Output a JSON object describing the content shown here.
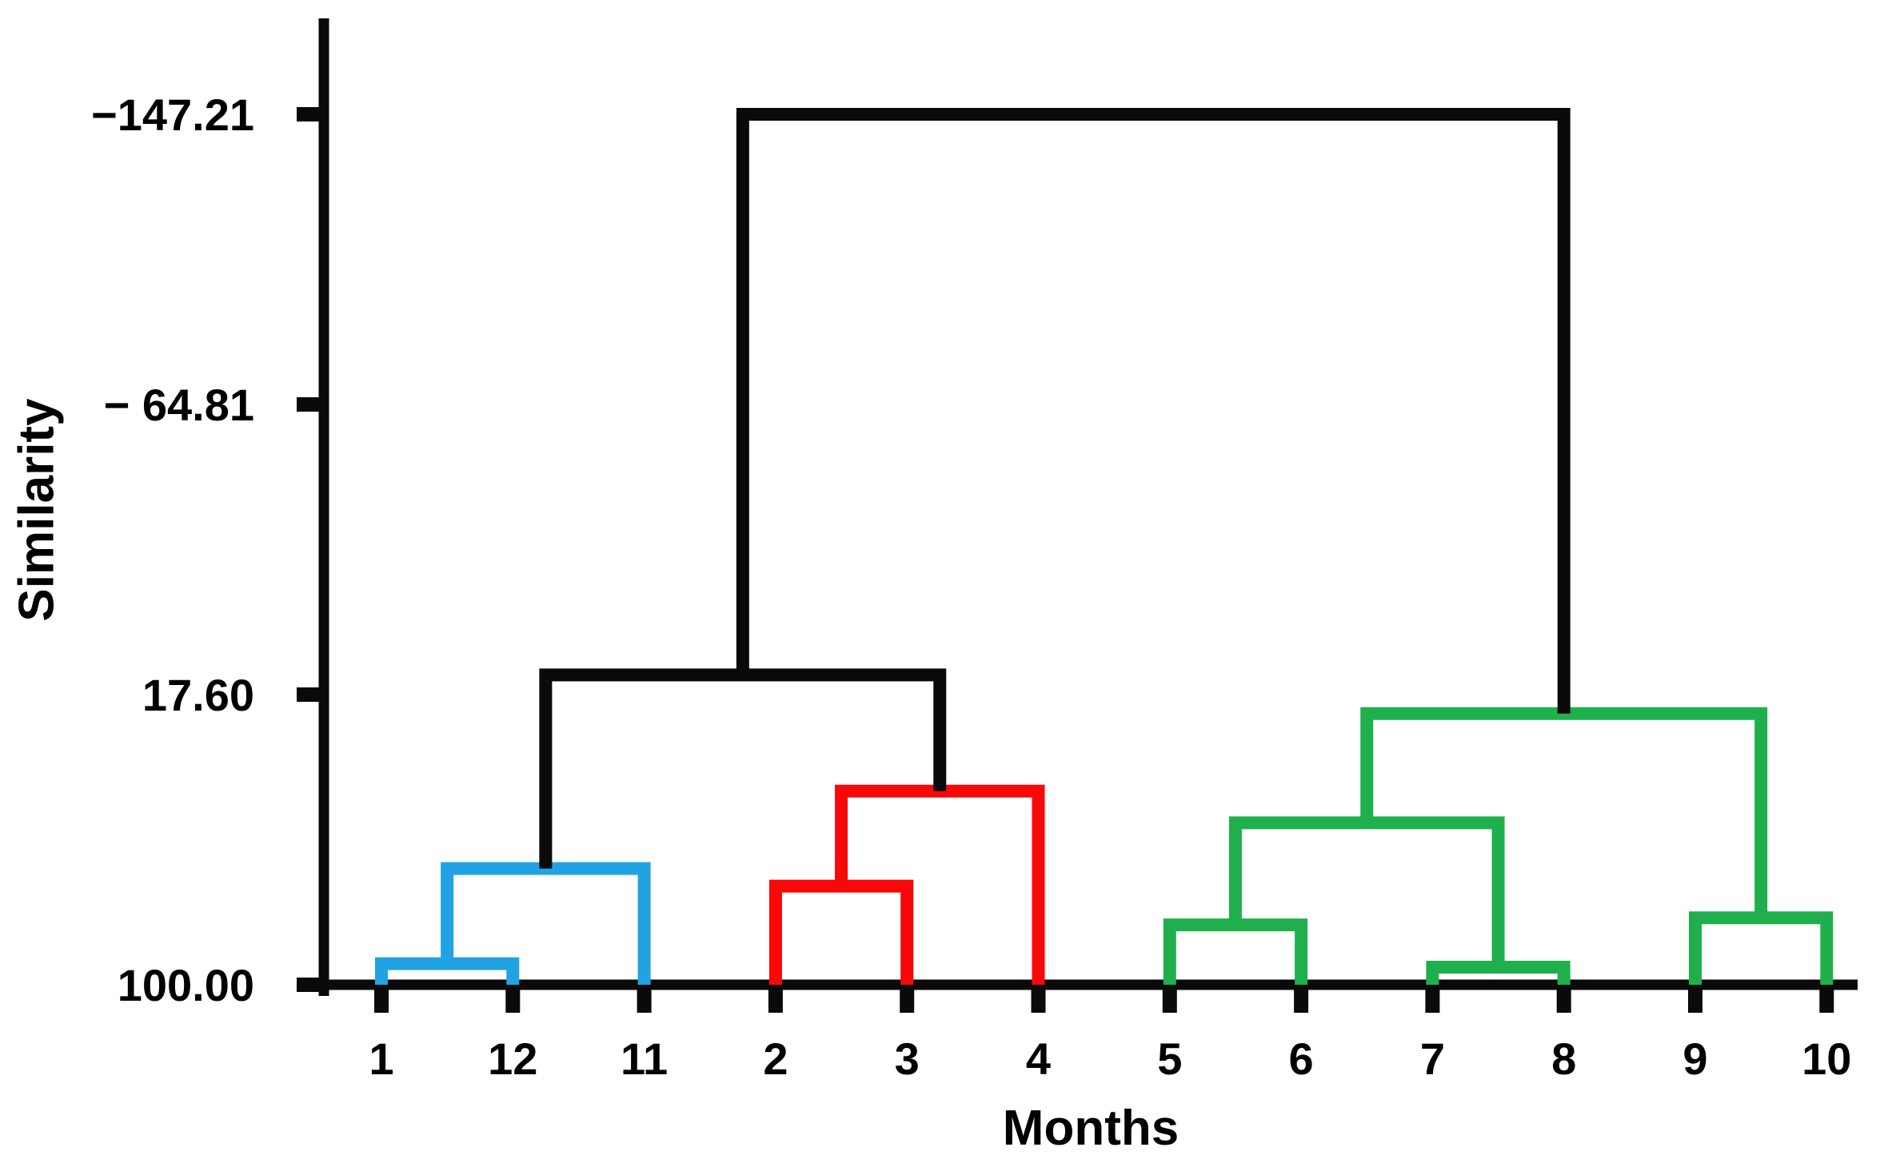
{
  "figure": {
    "background": "#ffffff"
  },
  "chart_data": {
    "type": "dendrogram",
    "title": "",
    "xlabel": "Months",
    "ylabel": "Similarity",
    "y_axis": {
      "label": "Similarity",
      "tick_values": [
        -147.21,
        -64.81,
        17.6,
        100.0
      ],
      "tick_labels": [
        "−147.21",
        "− 64.81",
        "17.60",
        "100.00"
      ],
      "top_value": -147.21,
      "bottom_value": 100.0
    },
    "x_axis": {
      "label": "Months",
      "leaf_labels": [
        "1",
        "12",
        "11",
        "2",
        "3",
        "4",
        "5",
        "6",
        "7",
        "8",
        "9",
        "10"
      ]
    },
    "leaves": [
      "1",
      "12",
      "11",
      "2",
      "3",
      "4",
      "5",
      "6",
      "7",
      "8",
      "9",
      "10"
    ],
    "clusters": [
      {
        "id": "blue-1-12",
        "children": [
          "1",
          "12"
        ],
        "similarity": 94,
        "color": "blue"
      },
      {
        "id": "blue-1-12-11",
        "children": [
          "blue-1-12",
          "11"
        ],
        "similarity": 67,
        "color": "blue"
      },
      {
        "id": "red-2-3",
        "children": [
          "2",
          "3"
        ],
        "similarity": 72,
        "color": "red"
      },
      {
        "id": "red-2-3-4",
        "children": [
          "red-2-3",
          "4"
        ],
        "similarity": 45,
        "color": "red"
      },
      {
        "id": "black-left",
        "children": [
          "blue-1-12-11",
          "red-2-3-4"
        ],
        "similarity": 12,
        "color": "black"
      },
      {
        "id": "green-5-6",
        "children": [
          "5",
          "6"
        ],
        "similarity": 83,
        "color": "green"
      },
      {
        "id": "green-7-8",
        "children": [
          "7",
          "8"
        ],
        "similarity": 95,
        "color": "green"
      },
      {
        "id": "green-5-6-7-8",
        "children": [
          "green-5-6",
          "green-7-8"
        ],
        "similarity": 54,
        "color": "green"
      },
      {
        "id": "green-9-10",
        "children": [
          "9",
          "10"
        ],
        "similarity": 81,
        "color": "green"
      },
      {
        "id": "green-all",
        "children": [
          "green-5-6-7-8",
          "green-9-10"
        ],
        "similarity": 23,
        "color": "green"
      },
      {
        "id": "root",
        "children": [
          "black-left",
          "green-all"
        ],
        "similarity": -147.21,
        "color": "black"
      }
    ],
    "colors": {
      "blue": "#21a3e3",
      "red": "#f90808",
      "green": "#1fb04d",
      "black": "#0a0a0a"
    }
  }
}
